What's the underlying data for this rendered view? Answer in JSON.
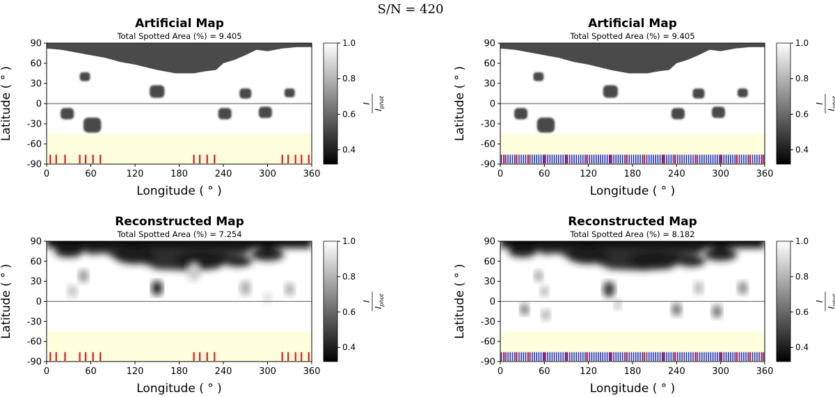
{
  "figure_title": "S/N = 420",
  "colorbar": {
    "label_num": "I",
    "label_den": "I",
    "label_den_sub": "phot",
    "ticks": [
      "1.0",
      "0.8",
      "0.6",
      "0.4"
    ],
    "tick_values": [
      1.0,
      0.8,
      0.6,
      0.4
    ],
    "range": [
      0.32,
      1.0
    ]
  },
  "colors": {
    "band": "#ffffdd",
    "phase_tick_red": "#e8141c",
    "phase_tick_blue": "#2030c8",
    "spot": "#4a4a4a"
  },
  "chart_data": [
    {
      "type": "heatmap",
      "title": "Artificial Map",
      "subtitle": "Total Spotted Area (%) = 9.405",
      "xlabel": "Longitude ( ° )",
      "ylabel": "Latitude ( ° )",
      "xlim": [
        0,
        360
      ],
      "ylim": [
        -90,
        90
      ],
      "xticks": [
        "0",
        "60",
        "120",
        "180",
        "240",
        "300",
        "360"
      ],
      "yticks": [
        "90",
        "60",
        "30",
        "0",
        "-30",
        "-60",
        "-90"
      ],
      "equator": 0,
      "invisible_band": [
        -90,
        -45
      ],
      "phase_ticks_red": [
        5,
        13,
        25,
        45,
        53,
        63,
        73,
        200,
        208,
        218,
        228,
        320,
        328,
        338,
        346,
        356
      ],
      "phase_ticks_blue": [],
      "polar_cap_min_latitude": 45,
      "spots": [
        {
          "lon": 52,
          "lat": 40,
          "r": 7
        },
        {
          "lon": 150,
          "lat": 18,
          "r": 10
        },
        {
          "lon": 270,
          "lat": 15,
          "r": 8
        },
        {
          "lon": 330,
          "lat": 16,
          "r": 7
        },
        {
          "lon": 28,
          "lat": -15,
          "r": 9
        },
        {
          "lon": 62,
          "lat": -32,
          "r": 12
        },
        {
          "lon": 242,
          "lat": -15,
          "r": 9
        },
        {
          "lon": 297,
          "lat": -13,
          "r": 9
        }
      ]
    },
    {
      "type": "heatmap",
      "title": "Artificial Map",
      "subtitle": "Total Spotted Area (%) = 9.405",
      "xlabel": "Longitude ( ° )",
      "ylabel": "Latitude ( ° )",
      "xlim": [
        0,
        360
      ],
      "ylim": [
        -90,
        90
      ],
      "xticks": [
        "0",
        "60",
        "120",
        "180",
        "240",
        "300",
        "360"
      ],
      "yticks": [
        "90",
        "60",
        "30",
        "0",
        "-30",
        "-60",
        "-90"
      ],
      "equator": 0,
      "invisible_band": [
        -90,
        -45
      ],
      "phase_ticks_red": [
        5,
        22,
        38,
        60,
        90,
        118,
        150,
        172,
        196,
        222,
        238,
        266,
        300,
        322,
        340,
        356
      ],
      "phase_ticks_blue": "every 3 degrees",
      "polar_cap_min_latitude": 45,
      "spots": [
        {
          "lon": 52,
          "lat": 40,
          "r": 7
        },
        {
          "lon": 150,
          "lat": 18,
          "r": 10
        },
        {
          "lon": 270,
          "lat": 15,
          "r": 8
        },
        {
          "lon": 330,
          "lat": 16,
          "r": 7
        },
        {
          "lon": 28,
          "lat": -15,
          "r": 9
        },
        {
          "lon": 62,
          "lat": -32,
          "r": 12
        },
        {
          "lon": 242,
          "lat": -15,
          "r": 9
        },
        {
          "lon": 297,
          "lat": -13,
          "r": 9
        }
      ]
    },
    {
      "type": "heatmap",
      "title": "Reconstructed Map",
      "subtitle": "Total Spotted Area (%) = 7.254",
      "xlabel": "Longitude ( ° )",
      "ylabel": "Latitude ( ° )",
      "xlim": [
        0,
        360
      ],
      "ylim": [
        -90,
        90
      ],
      "xticks": [
        "0",
        "60",
        "120",
        "180",
        "240",
        "300",
        "360"
      ],
      "yticks": [
        "90",
        "60",
        "30",
        "0",
        "-30",
        "-60",
        "-90"
      ],
      "equator": 0,
      "invisible_band": [
        -90,
        -45
      ],
      "phase_ticks_red": [
        5,
        13,
        25,
        45,
        53,
        63,
        73,
        200,
        208,
        218,
        228,
        320,
        328,
        338,
        346,
        356
      ],
      "phase_ticks_blue": [],
      "spots": [
        {
          "lon": 150,
          "lat": 20,
          "r": 9,
          "depth": 0.95
        },
        {
          "lon": 50,
          "lat": 38,
          "r": 8,
          "depth": 0.45
        },
        {
          "lon": 35,
          "lat": 15,
          "r": 8,
          "depth": 0.25
        },
        {
          "lon": 270,
          "lat": 20,
          "r": 9,
          "depth": 0.35
        },
        {
          "lon": 330,
          "lat": 18,
          "r": 8,
          "depth": 0.35
        },
        {
          "lon": 300,
          "lat": 5,
          "r": 7,
          "depth": 0.15
        },
        {
          "lon": 200,
          "lat": 45,
          "r": 12,
          "depth": 0.2
        }
      ]
    },
    {
      "type": "heatmap",
      "title": "Reconstructed Map",
      "subtitle": "Total Spotted Area (%) = 8.182",
      "xlabel": "Longitude ( ° )",
      "ylabel": "Latitude ( ° )",
      "xlim": [
        0,
        360
      ],
      "ylim": [
        -90,
        90
      ],
      "xticks": [
        "0",
        "60",
        "120",
        "180",
        "240",
        "300",
        "360"
      ],
      "yticks": [
        "90",
        "60",
        "30",
        "0",
        "-30",
        "-60",
        "-90"
      ],
      "equator": 0,
      "invisible_band": [
        -90,
        -45
      ],
      "phase_ticks_red": [
        5,
        22,
        38,
        60,
        90,
        118,
        150,
        172,
        196,
        222,
        238,
        266,
        300,
        322,
        340,
        356
      ],
      "phase_ticks_blue": "every 3 degrees",
      "spots": [
        {
          "lon": 148,
          "lat": 18,
          "r": 10,
          "depth": 0.8
        },
        {
          "lon": 52,
          "lat": 38,
          "r": 7,
          "depth": 0.4
        },
        {
          "lon": 60,
          "lat": 15,
          "r": 7,
          "depth": 0.3
        },
        {
          "lon": 33,
          "lat": -12,
          "r": 7,
          "depth": 0.6
        },
        {
          "lon": 62,
          "lat": -20,
          "r": 7,
          "depth": 0.35
        },
        {
          "lon": 240,
          "lat": -12,
          "r": 8,
          "depth": 0.6
        },
        {
          "lon": 295,
          "lat": -15,
          "r": 8,
          "depth": 0.6
        },
        {
          "lon": 330,
          "lat": 20,
          "r": 8,
          "depth": 0.5
        },
        {
          "lon": 270,
          "lat": 20,
          "r": 8,
          "depth": 0.3
        },
        {
          "lon": 160,
          "lat": -5,
          "r": 6,
          "depth": 0.3
        }
      ]
    }
  ]
}
